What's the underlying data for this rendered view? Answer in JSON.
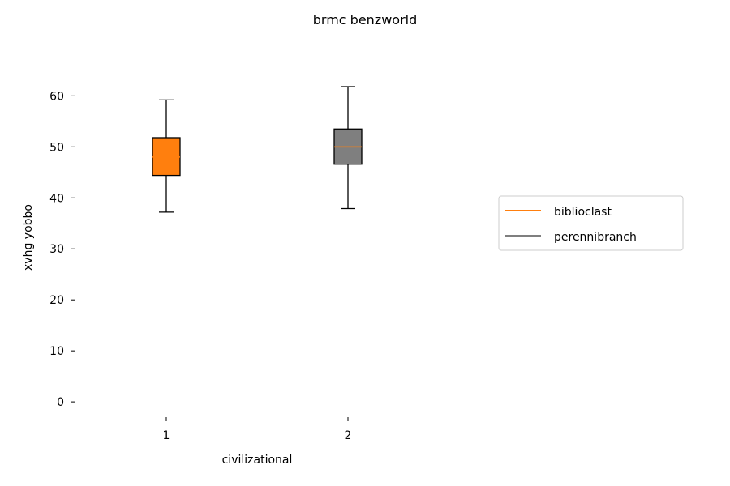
{
  "chart_data": {
    "type": "box",
    "title": "brmc benzworld",
    "xlabel": "civilizational",
    "ylabel": "xvhg yobbo",
    "ylim": [
      -3,
      68
    ],
    "yticks": [
      0,
      10,
      20,
      30,
      40,
      50,
      60
    ],
    "categories": [
      "1",
      "2"
    ],
    "series": [
      {
        "name": "biblioclast",
        "category": "1",
        "box_color": "#ff7f0e",
        "median_color": "#ff7f0e",
        "stats": {
          "whislo": 37.2,
          "q1": 44.4,
          "median": 48.0,
          "q3": 51.8,
          "whishi": 59.2
        }
      },
      {
        "name": "perennibranch",
        "category": "2",
        "box_color": "#7f7f7f",
        "median_color": "#ff7f0e",
        "stats": {
          "whislo": 37.9,
          "q1": 46.6,
          "median": 50.0,
          "q3": 53.5,
          "whishi": 61.8
        }
      }
    ],
    "legend": {
      "placement": "center-right",
      "entries": [
        {
          "label": "biblioclast",
          "color": "#ff7f0e"
        },
        {
          "label": "perennibranch",
          "color": "#7f7f7f"
        }
      ]
    },
    "grid": false
  }
}
